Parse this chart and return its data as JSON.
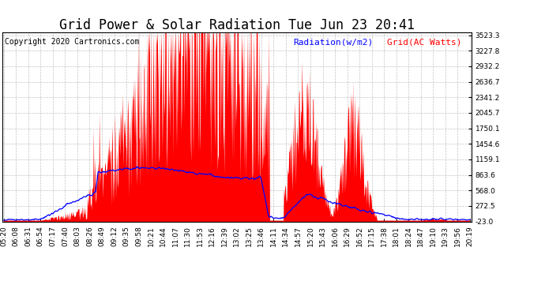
{
  "title": "Grid Power & Solar Radiation Tue Jun 23 20:41",
  "copyright": "Copyright 2020 Cartronics.com",
  "legend_radiation": "Radiation(w/m2)",
  "legend_grid": "Grid(AC Watts)",
  "y_ticks": [
    3523.3,
    3227.8,
    2932.2,
    2636.7,
    2341.2,
    2045.7,
    1750.1,
    1454.6,
    1159.1,
    863.6,
    568.0,
    272.5,
    -23.0
  ],
  "y_min": -23.0,
  "y_max": 3523.3,
  "background_color": "#ffffff",
  "grid_color": "#aaaaaa",
  "red_color": "#ff0000",
  "blue_color": "#0000ff",
  "title_fontsize": 12,
  "copyright_fontsize": 7,
  "legend_fontsize": 8,
  "tick_fontsize": 6.5,
  "x_labels": [
    "05:20",
    "06:08",
    "06:31",
    "06:54",
    "07:17",
    "07:40",
    "08:03",
    "08:26",
    "08:49",
    "09:12",
    "09:35",
    "09:58",
    "10:21",
    "10:44",
    "11:07",
    "11:30",
    "11:53",
    "12:16",
    "12:39",
    "13:02",
    "13:25",
    "13:46",
    "14:11",
    "14:34",
    "14:57",
    "15:20",
    "15:43",
    "16:06",
    "16:29",
    "16:52",
    "17:15",
    "17:38",
    "18:01",
    "18:24",
    "18:47",
    "19:10",
    "19:33",
    "19:56",
    "20:19"
  ],
  "n_points": 900
}
